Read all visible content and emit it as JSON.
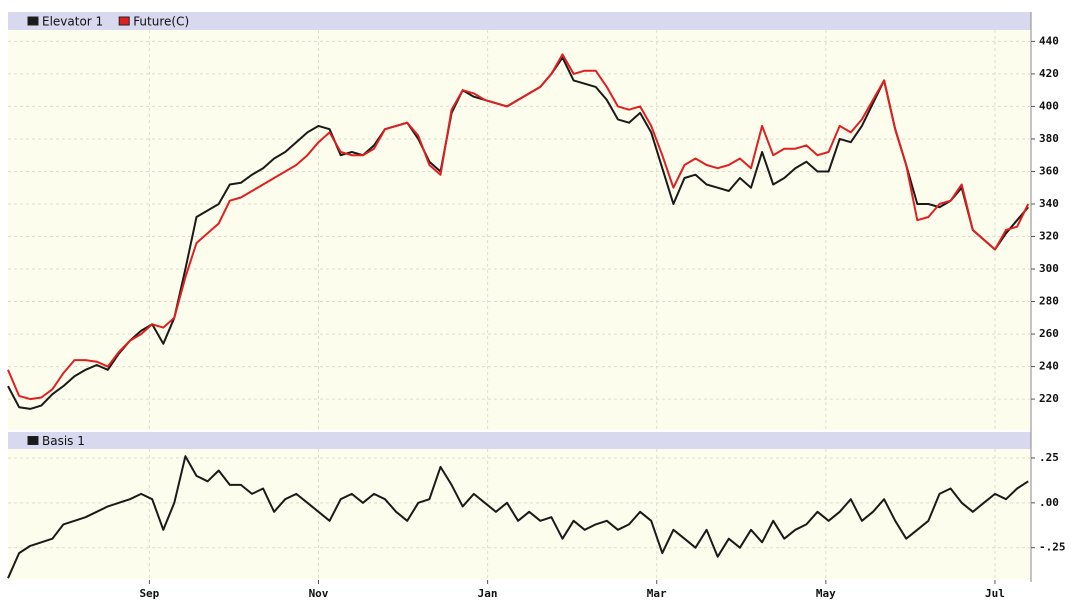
{
  "chart_data": [
    {
      "type": "line",
      "x": [
        0,
        4,
        8,
        12,
        16,
        20,
        24,
        28,
        32,
        36,
        40,
        44,
        48,
        52,
        56,
        60,
        64,
        68,
        72,
        76,
        80,
        84,
        88,
        92,
        96,
        100,
        104,
        108,
        112,
        116,
        120,
        124,
        128,
        132,
        136,
        140,
        144,
        148,
        152,
        156,
        160,
        164,
        168,
        172,
        176,
        180,
        184,
        188,
        192,
        196,
        200,
        204,
        208,
        212,
        216,
        220,
        224,
        228,
        232,
        236,
        240,
        244,
        248,
        252,
        256,
        260,
        264,
        268,
        272,
        276,
        280,
        284,
        288,
        292,
        296,
        300,
        304,
        308,
        312,
        316,
        320,
        324,
        328,
        332,
        336,
        340,
        344,
        348,
        352,
        356,
        360,
        364,
        368
      ],
      "xlim": [
        0,
        369
      ],
      "series": [
        {
          "name": "Elevator 1",
          "color": "#1a1a1a",
          "values": [
            228,
            215,
            214,
            216,
            223,
            228,
            234,
            238,
            241,
            238,
            248,
            256,
            262,
            266,
            254,
            270,
            300,
            332,
            336,
            340,
            352,
            353,
            358,
            362,
            368,
            372,
            378,
            384,
            388,
            386,
            370,
            372,
            370,
            376,
            386,
            388,
            390,
            380,
            366,
            360,
            396,
            410,
            406,
            404,
            402,
            400,
            404,
            408,
            412,
            420,
            430,
            416,
            414,
            412,
            404,
            392,
            390,
            396,
            384,
            362,
            340,
            356,
            358,
            352,
            350,
            348,
            356,
            350,
            372,
            352,
            356,
            362,
            366,
            360,
            360,
            380,
            378,
            388,
            402,
            416,
            386,
            364,
            340,
            340,
            338,
            342,
            350,
            324,
            318,
            312,
            322,
            330,
            338
          ]
        },
        {
          "name": "Future(C)",
          "color": "#e02020",
          "values": [
            238,
            222,
            220,
            221,
            226,
            236,
            244,
            244,
            243,
            240,
            249,
            256,
            260,
            266,
            264,
            270,
            295,
            316,
            322,
            328,
            342,
            344,
            348,
            352,
            356,
            360,
            364,
            370,
            378,
            384,
            372,
            370,
            370,
            374,
            386,
            388,
            390,
            382,
            364,
            358,
            398,
            410,
            408,
            404,
            402,
            400,
            404,
            408,
            412,
            420,
            432,
            420,
            422,
            422,
            412,
            400,
            398,
            400,
            388,
            370,
            350,
            364,
            368,
            364,
            362,
            364,
            368,
            362,
            388,
            370,
            374,
            374,
            376,
            370,
            372,
            388,
            384,
            392,
            404,
            416,
            386,
            364,
            330,
            332,
            340,
            342,
            352,
            324,
            318,
            312,
            324,
            326,
            340
          ]
        }
      ],
      "ylim": [
        201,
        447
      ],
      "yticks": [
        220,
        240,
        260,
        280,
        300,
        320,
        340,
        360,
        380,
        400,
        420,
        440
      ],
      "grid": true
    },
    {
      "type": "line",
      "x": [
        0,
        4,
        8,
        12,
        16,
        20,
        24,
        28,
        32,
        36,
        40,
        44,
        48,
        52,
        56,
        60,
        64,
        68,
        72,
        76,
        80,
        84,
        88,
        92,
        96,
        100,
        104,
        108,
        112,
        116,
        120,
        124,
        128,
        132,
        136,
        140,
        144,
        148,
        152,
        156,
        160,
        164,
        168,
        172,
        176,
        180,
        184,
        188,
        192,
        196,
        200,
        204,
        208,
        212,
        216,
        220,
        224,
        228,
        232,
        236,
        240,
        244,
        248,
        252,
        256,
        260,
        264,
        268,
        272,
        276,
        280,
        284,
        288,
        292,
        296,
        300,
        304,
        308,
        312,
        316,
        320,
        324,
        328,
        332,
        336,
        340,
        344,
        348,
        352,
        356,
        360,
        364,
        368
      ],
      "xlim": [
        0,
        369
      ],
      "xticks": [
        {
          "value": 51,
          "label": "Sep"
        },
        {
          "value": 112,
          "label": "Nov"
        },
        {
          "value": 173,
          "label": "Jan"
        },
        {
          "value": 234,
          "label": "Mar"
        },
        {
          "value": 295,
          "label": "May"
        },
        {
          "value": 356,
          "label": "Jul"
        }
      ],
      "series": [
        {
          "name": "Basis 1",
          "color": "#1a1a1a",
          "values": [
            -0.42,
            -0.28,
            -0.24,
            -0.22,
            -0.2,
            -0.12,
            -0.1,
            -0.08,
            -0.05,
            -0.02,
            0.0,
            0.02,
            0.05,
            0.02,
            -0.15,
            0.0,
            0.26,
            0.15,
            0.12,
            0.18,
            0.1,
            0.1,
            0.05,
            0.08,
            -0.05,
            0.02,
            0.05,
            0.0,
            -0.05,
            -0.1,
            0.02,
            0.05,
            0.0,
            0.05,
            0.02,
            -0.05,
            -0.1,
            0.0,
            0.02,
            0.2,
            0.1,
            -0.02,
            0.05,
            0.0,
            -0.05,
            0.0,
            -0.1,
            -0.05,
            -0.1,
            -0.08,
            -0.2,
            -0.1,
            -0.15,
            -0.12,
            -0.1,
            -0.15,
            -0.12,
            -0.05,
            -0.1,
            -0.28,
            -0.15,
            -0.2,
            -0.25,
            -0.15,
            -0.3,
            -0.2,
            -0.25,
            -0.15,
            -0.22,
            -0.1,
            -0.2,
            -0.15,
            -0.12,
            -0.05,
            -0.1,
            -0.05,
            0.02,
            -0.1,
            -0.05,
            0.02,
            -0.1,
            -0.2,
            -0.15,
            -0.1,
            0.05,
            0.08,
            0.0,
            -0.05,
            0.0,
            0.05,
            0.02,
            0.08,
            0.12
          ]
        }
      ],
      "ylim": [
        -0.43,
        0.3
      ],
      "yticks": [
        {
          "value": 0.25,
          "label": ".25"
        },
        {
          "value": 0,
          "label": ".00"
        },
        {
          "value": -0.25,
          "label": "-.25"
        }
      ],
      "grid": true
    }
  ]
}
